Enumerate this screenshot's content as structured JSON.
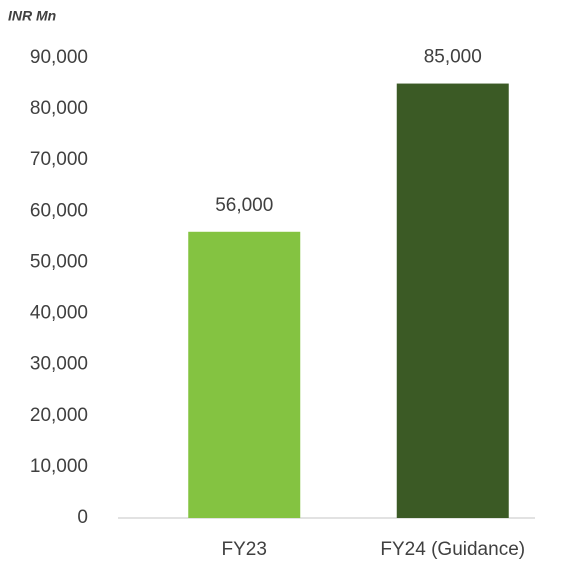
{
  "chart_data": {
    "type": "bar",
    "ylabel": "INR Mn",
    "categories": [
      "FY23",
      "FY24 (Guidance)"
    ],
    "values": [
      56000,
      85000
    ],
    "value_labels": [
      "56,000",
      "85,000"
    ],
    "colors": [
      "#84c341",
      "#3b5a25"
    ],
    "ylim": [
      0,
      90000
    ],
    "yticks": [
      0,
      {
        "value": 10000,
        "label": "10,000"
      },
      {
        "value": 20000,
        "label": "20,000"
      },
      {
        "value": 30000,
        "label": "30,000"
      },
      {
        "value": 40000,
        "label": "40,000"
      },
      {
        "value": 50000,
        "label": "50,000"
      },
      {
        "value": 60000,
        "label": "60,000"
      },
      {
        "value": 70000,
        "label": "70,000"
      },
      {
        "value": 80000,
        "label": "80,000"
      },
      {
        "value": 90000,
        "label": "90,000"
      }
    ],
    "grid": false
  }
}
